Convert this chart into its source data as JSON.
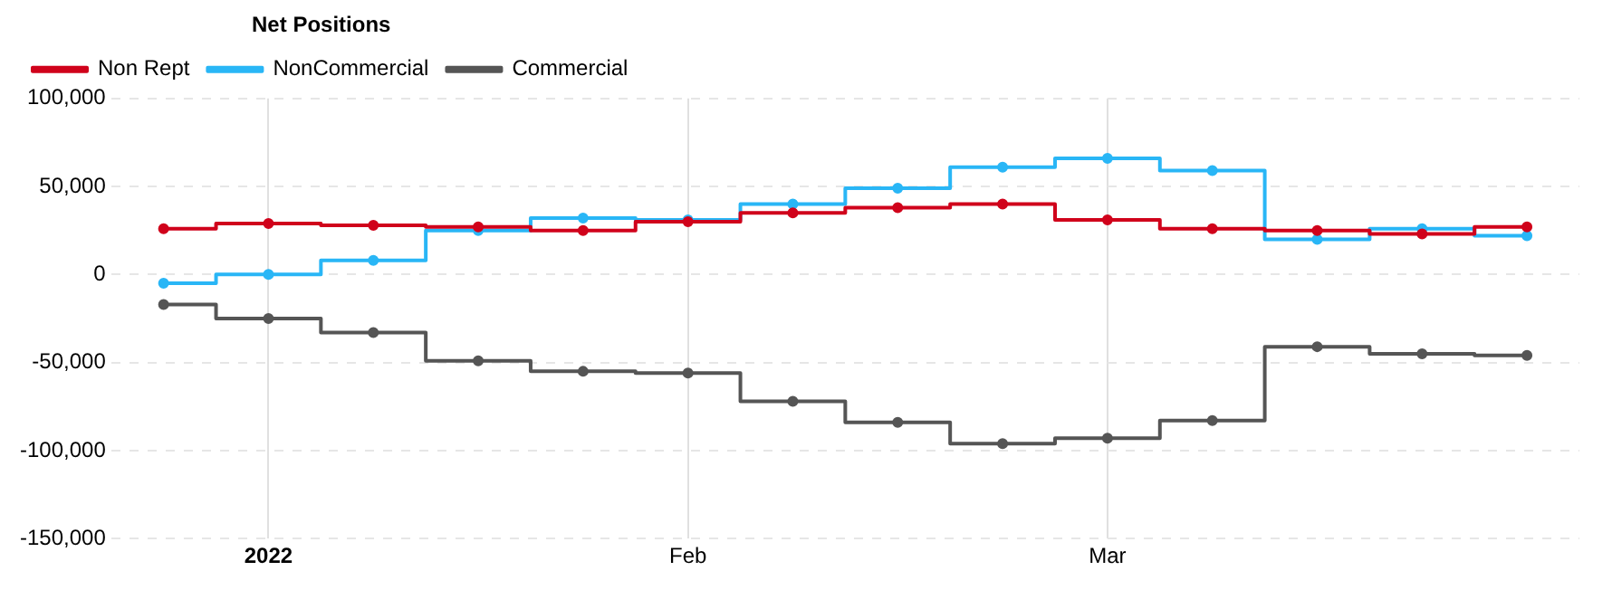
{
  "chart_data": {
    "type": "step",
    "legend_title": "Net Positions",
    "categories": [
      null,
      "2022",
      null,
      null,
      null,
      "Feb",
      null,
      null,
      null,
      "Mar",
      null,
      null,
      null,
      null
    ],
    "series": [
      {
        "name": "Commercial",
        "color": "#555555",
        "values": [
          -17000,
          -25000,
          -33000,
          -49000,
          -55000,
          -56000,
          -72000,
          -84000,
          -96000,
          -93000,
          -83000,
          -41000,
          -45000,
          -46000
        ]
      },
      {
        "name": "NonCommercial",
        "color": "#29b6f6",
        "values": [
          -5000,
          0,
          8000,
          25000,
          32000,
          31000,
          40000,
          49000,
          61000,
          66000,
          59000,
          20000,
          26000,
          22000
        ]
      },
      {
        "name": "Non Rept",
        "color": "#d0021b",
        "values": [
          26000,
          29000,
          28000,
          27000,
          25000,
          30000,
          35000,
          38000,
          40000,
          31000,
          26000,
          25000,
          23000,
          27000
        ]
      }
    ],
    "ylim": [
      -150000,
      100000
    ],
    "yticks": [
      {
        "value": -150000,
        "label": "-150,000"
      },
      {
        "value": -100000,
        "label": "-100,000"
      },
      {
        "value": -50000,
        "label": "-50,000"
      },
      0,
      {
        "value": 50000,
        "label": "50,000"
      },
      {
        "value": 100000,
        "label": "100,000"
      }
    ],
    "grid": true,
    "legend": "top",
    "marker": "circle",
    "line_style": "solid"
  }
}
